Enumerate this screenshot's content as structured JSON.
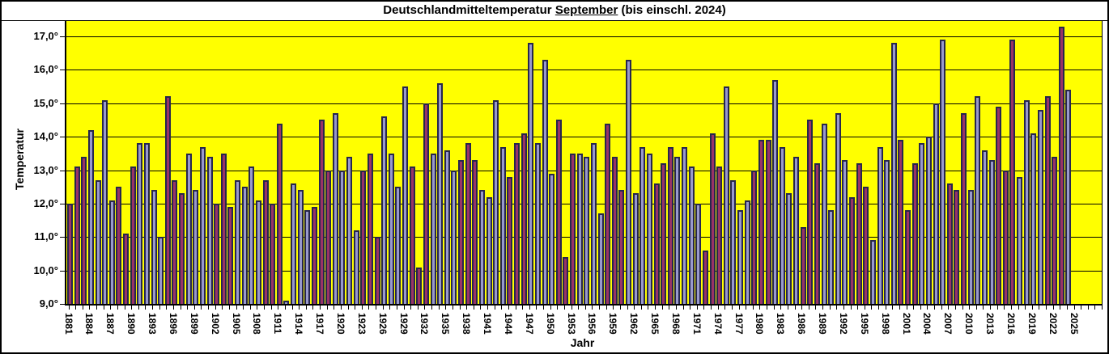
{
  "chart_data": {
    "type": "bar",
    "title": "Deutschlandmitteltemperatur September (bis einschl. 2024)",
    "title_parts": {
      "prefix": "Deutschlandmitteltemperatur ",
      "highlight": "September",
      "suffix": " (bis einschl. 2024)"
    },
    "xlabel": "Jahr",
    "ylabel": "Temperatur",
    "ylim": [
      9.0,
      17.0
    ],
    "ytick_step": 1.0,
    "ytick_labels": [
      "17,0°",
      "16,0°",
      "15,0°",
      "14,0°",
      "13,0°",
      "12,0°",
      "11,0°",
      "10,0°",
      "9,0°"
    ],
    "xtick_labels": [
      "1881",
      "1884",
      "1887",
      "1890",
      "1893",
      "1896",
      "1899",
      "1902",
      "1905",
      "1908",
      "1911",
      "1914",
      "1917",
      "1920",
      "1923",
      "1926",
      "1929",
      "1932",
      "1935",
      "1938",
      "1941",
      "1944",
      "1947",
      "1950",
      "1953",
      "1956",
      "1959",
      "1962",
      "1965",
      "1968",
      "1971",
      "1974",
      "1977",
      "1980",
      "1983",
      "1986",
      "1989",
      "1992",
      "1995",
      "1998",
      "2001",
      "2004",
      "2007",
      "2010",
      "2013",
      "2016",
      "2019",
      "2022",
      "2025"
    ],
    "grid": "horizontal-major",
    "legend": "none",
    "plot_bg": "#FFFF00",
    "bar_fill_a": "#9999CC",
    "bar_fill_b": "#993366",
    "bar_border": "#26264D",
    "title_highlight_color": "#FF0000",
    "years": [
      1881,
      1882,
      1883,
      1884,
      1885,
      1886,
      1887,
      1888,
      1889,
      1890,
      1891,
      1892,
      1893,
      1894,
      1895,
      1896,
      1897,
      1898,
      1899,
      1900,
      1901,
      1902,
      1903,
      1904,
      1905,
      1906,
      1907,
      1908,
      1909,
      1910,
      1911,
      1912,
      1913,
      1914,
      1915,
      1916,
      1917,
      1918,
      1919,
      1920,
      1921,
      1922,
      1923,
      1924,
      1925,
      1926,
      1927,
      1928,
      1929,
      1930,
      1931,
      1932,
      1933,
      1934,
      1935,
      1936,
      1937,
      1938,
      1939,
      1940,
      1941,
      1942,
      1943,
      1944,
      1945,
      1946,
      1947,
      1948,
      1949,
      1950,
      1951,
      1952,
      1953,
      1954,
      1955,
      1956,
      1957,
      1958,
      1959,
      1960,
      1961,
      1962,
      1963,
      1964,
      1965,
      1966,
      1967,
      1968,
      1969,
      1970,
      1971,
      1972,
      1973,
      1974,
      1975,
      1976,
      1977,
      1978,
      1979,
      1980,
      1981,
      1982,
      1983,
      1984,
      1985,
      1986,
      1987,
      1988,
      1989,
      1990,
      1991,
      1992,
      1993,
      1994,
      1995,
      1996,
      1997,
      1998,
      1999,
      2000,
      2001,
      2002,
      2003,
      2004,
      2005,
      2006,
      2007,
      2008,
      2009,
      2010,
      2011,
      2012,
      2013,
      2014,
      2015,
      2016,
      2017,
      2018,
      2019,
      2020,
      2021,
      2022,
      2023,
      2024
    ],
    "values": [
      12.0,
      13.1,
      13.4,
      14.2,
      12.7,
      15.1,
      12.1,
      12.5,
      11.1,
      13.1,
      13.8,
      13.8,
      12.4,
      11.0,
      15.2,
      12.7,
      12.3,
      13.5,
      12.4,
      13.7,
      13.4,
      12.0,
      13.5,
      11.9,
      12.7,
      12.5,
      13.1,
      12.1,
      12.7,
      12.0,
      14.4,
      9.1,
      12.6,
      12.4,
      11.8,
      11.9,
      14.5,
      13.0,
      14.7,
      13.0,
      13.4,
      11.2,
      13.0,
      13.5,
      11.0,
      14.6,
      13.5,
      12.5,
      15.5,
      13.1,
      10.1,
      15.0,
      13.5,
      15.6,
      13.6,
      13.0,
      13.3,
      13.8,
      13.3,
      12.4,
      12.2,
      15.1,
      13.7,
      12.8,
      13.8,
      14.1,
      16.8,
      13.8,
      16.3,
      12.9,
      14.5,
      10.4,
      13.5,
      13.5,
      13.4,
      13.8,
      11.7,
      14.4,
      13.4,
      12.4,
      16.3,
      12.3,
      13.7,
      13.5,
      12.6,
      13.2,
      13.7,
      13.4,
      13.7,
      13.1,
      12.0,
      10.6,
      14.1,
      13.1,
      15.5,
      12.7,
      11.8,
      12.1,
      13.0,
      13.9,
      13.9,
      15.7,
      13.7,
      12.3,
      13.4,
      11.3,
      14.5,
      13.2,
      14.4,
      11.8,
      14.7,
      13.3,
      12.2,
      13.2,
      12.5,
      10.9,
      13.7,
      13.3,
      16.8,
      13.9,
      11.8,
      13.2,
      13.8,
      14.0,
      15.0,
      16.9,
      12.6,
      12.4,
      14.7,
      12.4,
      15.2,
      13.6,
      13.3,
      14.9,
      13.0,
      16.9,
      12.8,
      15.1,
      14.1,
      14.8,
      15.2,
      13.4,
      17.3,
      15.4
    ]
  }
}
